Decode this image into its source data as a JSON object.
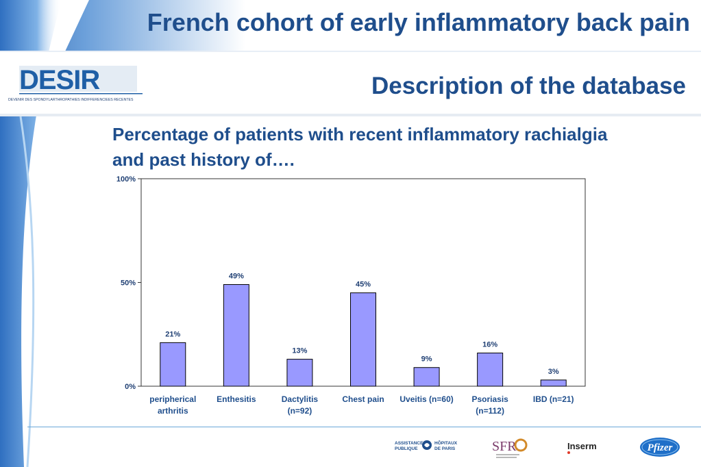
{
  "header": {
    "title": "French cohort of early inflammatory back pain",
    "subtitle": "Description of the database"
  },
  "logo": {
    "text": "DESIR",
    "tagline": "DEVENIR DES SPONDYLARTHROPATHIES INDIFFERENCIEES RECENTES"
  },
  "chart_heading": "Percentage of patients with recent inflammatory rachialgia and past history of….",
  "chart_data": {
    "type": "bar",
    "categories": [
      [
        "peripherical",
        "arthritis"
      ],
      [
        "Enthesitis"
      ],
      [
        "Dactylitis",
        "(n=92)"
      ],
      [
        "Chest pain"
      ],
      [
        "Uveitis (n=60)"
      ],
      [
        "Psoriasis",
        "(n=112)"
      ],
      [
        "IBD (n=21)"
      ]
    ],
    "values": [
      21,
      49,
      13,
      45,
      9,
      16,
      3
    ],
    "value_labels": [
      "21%",
      "49%",
      "13%",
      "45%",
      "9%",
      "16%",
      "3%"
    ],
    "yticks": [
      "0%",
      "50%",
      "100%"
    ],
    "ylim": [
      0,
      100
    ],
    "bar_color": "#9999ff",
    "grid": false
  },
  "footer": {
    "aphp": [
      "ASSISTANCE",
      "PUBLIQUE",
      "HÔPITAUX",
      "DE PARIS"
    ],
    "sfr": "SFR",
    "inserm": "Inserm",
    "pfizer": "Pfizer"
  },
  "colors": {
    "title": "#1f4e8c",
    "accent": "#3f7fc8"
  }
}
